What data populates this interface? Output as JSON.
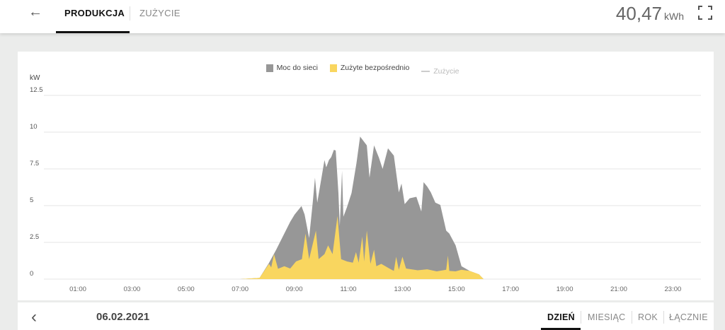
{
  "header": {
    "back_icon": "arrow-left-icon",
    "tabs": [
      {
        "label": "PRODUKCJA",
        "active": true
      },
      {
        "label": "ZUŻYCIE",
        "active": false
      }
    ],
    "total_value": "40,47",
    "total_unit": "kWh",
    "fullscreen_icon": "fullscreen-icon"
  },
  "footer": {
    "prev_icon": "chevron-left-icon",
    "date": "06.02.2021",
    "periods": [
      {
        "label": "DZIEŃ",
        "active": true
      },
      {
        "label": "MIESIĄC"
      },
      {
        "label": "ROK"
      },
      {
        "label": "ŁĄCZNIE"
      }
    ]
  },
  "chart_data": {
    "type": "area",
    "stacked": true,
    "ylabel": "kW",
    "ylim": [
      0,
      12.5
    ],
    "yticks": [
      "0",
      "2.5",
      "5",
      "7.5",
      "10",
      "12.5"
    ],
    "xticks": [
      "01:00",
      "03:00",
      "05:00",
      "07:00",
      "09:00",
      "11:00",
      "13:00",
      "15:00",
      "17:00",
      "19:00",
      "21:00",
      "23:00"
    ],
    "grid": true,
    "legend": "top-center",
    "legend_entries": [
      {
        "name": "Moc do sieci",
        "color": "#979797"
      },
      {
        "name": "Zużyte bezpośrednio",
        "color": "#f9d65f"
      },
      {
        "name": "Zużycie",
        "color": "#cccccc"
      }
    ],
    "series": [
      {
        "name": "Zużyte bezpośrednio",
        "color": "#f9d65f",
        "points": [
          [
            "07:00",
            0
          ],
          [
            "07:43",
            0.08
          ],
          [
            "08:04",
            1.04
          ],
          [
            "08:09",
            0.8
          ],
          [
            "08:15",
            1.7
          ],
          [
            "08:24",
            0.7
          ],
          [
            "08:38",
            0.88
          ],
          [
            "08:51",
            0.72
          ],
          [
            "09:04",
            1.2
          ],
          [
            "09:17",
            1.36
          ],
          [
            "09:25",
            3.1
          ],
          [
            "09:33",
            1.36
          ],
          [
            "09:48",
            3.3
          ],
          [
            "09:54",
            1.36
          ],
          [
            "10:07",
            1.7
          ],
          [
            "10:15",
            2.3
          ],
          [
            "10:25",
            1.7
          ],
          [
            "10:36",
            4.3
          ],
          [
            "10:44",
            1.36
          ],
          [
            "10:57",
            1.2
          ],
          [
            "11:10",
            1.12
          ],
          [
            "11:17",
            1.84
          ],
          [
            "11:23",
            1.12
          ],
          [
            "11:31",
            2.9
          ],
          [
            "11:35",
            1.2
          ],
          [
            "11:41",
            3.3
          ],
          [
            "11:49",
            1.04
          ],
          [
            "11:57",
            2.0
          ],
          [
            "12:02",
            0.88
          ],
          [
            "12:13",
            1.04
          ],
          [
            "12:31",
            0.72
          ],
          [
            "12:41",
            0.56
          ],
          [
            "12:46",
            1.52
          ],
          [
            "12:52",
            0.64
          ],
          [
            "13:00",
            1.52
          ],
          [
            "13:08",
            0.72
          ],
          [
            "13:34",
            0.6
          ],
          [
            "13:55",
            0.67
          ],
          [
            "14:16",
            0.53
          ],
          [
            "14:37",
            0.64
          ],
          [
            "14:41",
            1.6
          ],
          [
            "14:44",
            0.56
          ],
          [
            "14:58",
            0.53
          ],
          [
            "15:11",
            0.64
          ],
          [
            "15:29",
            0.56
          ],
          [
            "15:50",
            0.32
          ],
          [
            "16:00",
            0
          ]
        ]
      },
      {
        "name": "Moc do sieci",
        "color": "#979797",
        "cumulative_top": true,
        "points": [
          [
            "07:00",
            0
          ],
          [
            "07:43",
            0.08
          ],
          [
            "08:04",
            1.1
          ],
          [
            "08:20",
            2.0
          ],
          [
            "08:51",
            3.9
          ],
          [
            "09:01",
            4.4
          ],
          [
            "09:16",
            4.97
          ],
          [
            "09:23",
            4.4
          ],
          [
            "09:33",
            2.8
          ],
          [
            "09:41",
            5.2
          ],
          [
            "09:46",
            6.9
          ],
          [
            "09:51",
            5.2
          ],
          [
            "10:07",
            8.1
          ],
          [
            "10:11",
            7.6
          ],
          [
            "10:17",
            8.1
          ],
          [
            "10:22",
            8.3
          ],
          [
            "10:28",
            8.8
          ],
          [
            "10:32",
            8.75
          ],
          [
            "10:38",
            5.85
          ],
          [
            "10:41",
            3.6
          ],
          [
            "10:46",
            7.37
          ],
          [
            "10:49",
            4.25
          ],
          [
            "10:57",
            4.9
          ],
          [
            "11:07",
            5.85
          ],
          [
            "11:18",
            7.9
          ],
          [
            "11:26",
            9.7
          ],
          [
            "11:41",
            9.1
          ],
          [
            "11:47",
            6.9
          ],
          [
            "11:57",
            9.1
          ],
          [
            "12:08",
            8.25
          ],
          [
            "12:16",
            7.5
          ],
          [
            "12:28",
            8.9
          ],
          [
            "12:41",
            8.4
          ],
          [
            "12:52",
            5.9
          ],
          [
            "12:58",
            6.5
          ],
          [
            "13:05",
            5.1
          ],
          [
            "13:16",
            5.5
          ],
          [
            "13:31",
            5.6
          ],
          [
            "13:42",
            4.6
          ],
          [
            "13:47",
            6.6
          ],
          [
            "13:55",
            6.3
          ],
          [
            "14:03",
            5.9
          ],
          [
            "14:13",
            5.2
          ],
          [
            "14:24",
            5.05
          ],
          [
            "14:37",
            3.3
          ],
          [
            "14:44",
            3.1
          ],
          [
            "14:58",
            2.3
          ],
          [
            "15:11",
            0.88
          ],
          [
            "15:24",
            0.65
          ],
          [
            "15:29",
            0.56
          ],
          [
            "15:50",
            0.32
          ],
          [
            "16:00",
            0
          ]
        ]
      }
    ]
  }
}
